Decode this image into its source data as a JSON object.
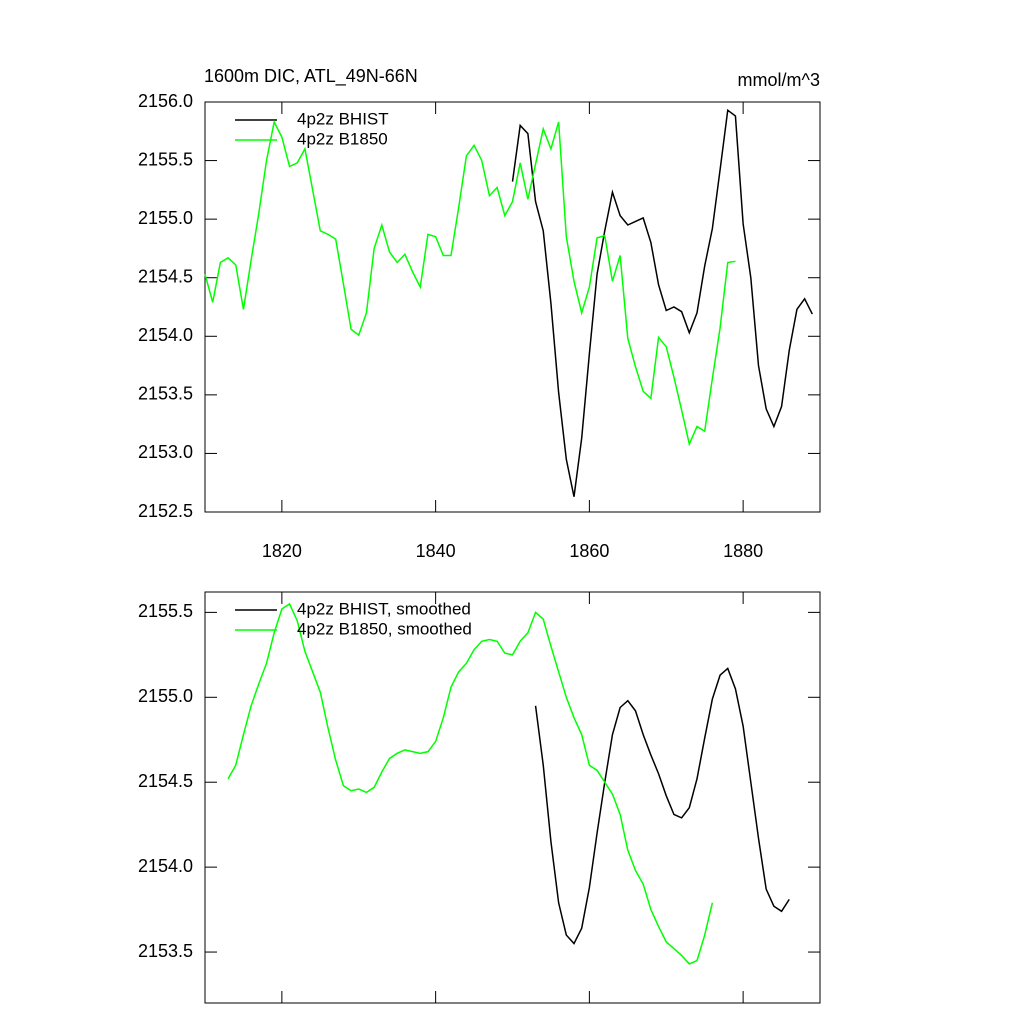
{
  "chart_data": [
    {
      "type": "line",
      "title": "1600m DIC, ATL_49N-66N",
      "subtitle": "mmol/m^3",
      "xlim": [
        1810,
        1890
      ],
      "xticks": [
        1820,
        1840,
        1860,
        1880
      ],
      "ylim": [
        2152.5,
        2156.0
      ],
      "yticks": [
        {
          "value": 2152.5,
          "label": "2152.5"
        },
        {
          "value": 2153,
          "label": "2153.0"
        },
        {
          "value": 2153.5,
          "label": "2153.5"
        },
        {
          "value": 2154,
          "label": "2154.0"
        },
        {
          "value": 2154.5,
          "label": "2154.5"
        },
        {
          "value": 2155,
          "label": "2155.0"
        },
        {
          "value": 2155.5,
          "label": "2155.5"
        },
        {
          "value": 2156,
          "label": "2156.0"
        }
      ],
      "legend": "top-left",
      "series": [
        {
          "name": "4p2z BHIST",
          "color": "#000000",
          "x": [
            1850,
            1851,
            1852,
            1853,
            1854,
            1855,
            1856,
            1857,
            1858,
            1859,
            1860,
            1861,
            1862,
            1863,
            1864,
            1865,
            1866,
            1867,
            1868,
            1869,
            1870,
            1871,
            1872,
            1873,
            1874,
            1875,
            1876,
            1877,
            1878,
            1879,
            1880,
            1881,
            1882,
            1883,
            1884,
            1885,
            1886,
            1887,
            1888,
            1889
          ],
          "values": [
            2155.32,
            2155.8,
            2155.73,
            2155.15,
            2154.9,
            2154.28,
            2153.52,
            2152.95,
            2152.63,
            2153.13,
            2153.85,
            2154.53,
            2154.9,
            2155.23,
            2155.03,
            2154.95,
            2154.98,
            2155.01,
            2154.8,
            2154.44,
            2154.22,
            2154.25,
            2154.21,
            2154.03,
            2154.2,
            2154.6,
            2154.92,
            2155.42,
            2155.93,
            2155.88,
            2154.96,
            2154.5,
            2153.75,
            2153.38,
            2153.23,
            2153.4,
            2153.88,
            2154.23,
            2154.32,
            2154.19
          ]
        },
        {
          "name": "4p2z B1850",
          "color": "#00ff00",
          "x": [
            1810,
            1811,
            1812,
            1813,
            1814,
            1815,
            1816,
            1817,
            1818,
            1819,
            1820,
            1821,
            1822,
            1823,
            1824,
            1825,
            1826,
            1827,
            1828,
            1829,
            1830,
            1831,
            1832,
            1833,
            1834,
            1835,
            1836,
            1837,
            1838,
            1839,
            1840,
            1841,
            1842,
            1843,
            1844,
            1845,
            1846,
            1847,
            1848,
            1849,
            1850,
            1851,
            1852,
            1853,
            1854,
            1855,
            1856,
            1857,
            1858,
            1859,
            1860,
            1861,
            1862,
            1863,
            1864,
            1865,
            1866,
            1867,
            1868,
            1869,
            1870,
            1871,
            1872,
            1873,
            1874,
            1875,
            1876,
            1877,
            1878,
            1879
          ],
          "values": [
            2154.53,
            2154.29,
            2154.63,
            2154.67,
            2154.61,
            2154.23,
            2154.65,
            2155.05,
            2155.5,
            2155.83,
            2155.7,
            2155.45,
            2155.48,
            2155.6,
            2155.25,
            2154.9,
            2154.87,
            2154.83,
            2154.45,
            2154.06,
            2154.01,
            2154.2,
            2154.75,
            2154.95,
            2154.72,
            2154.63,
            2154.7,
            2154.55,
            2154.42,
            2154.87,
            2154.85,
            2154.69,
            2154.69,
            2155.1,
            2155.54,
            2155.63,
            2155.5,
            2155.2,
            2155.27,
            2155.03,
            2155.15,
            2155.48,
            2155.17,
            2155.47,
            2155.77,
            2155.6,
            2155.83,
            2154.85,
            2154.47,
            2154.2,
            2154.42,
            2154.84,
            2154.86,
            2154.47,
            2154.69,
            2153.98,
            2153.74,
            2153.53,
            2153.47,
            2153.99,
            2153.91,
            2153.65,
            2153.37,
            2153.08,
            2153.23,
            2153.19,
            2153.64,
            2154.07,
            2154.63,
            2154.64
          ]
        }
      ]
    },
    {
      "type": "line",
      "xlim": [
        1810,
        1890
      ],
      "ylim": [
        2153.2,
        2155.62
      ],
      "yticks": [
        {
          "value": 2153.5,
          "label": "2153.5"
        },
        {
          "value": 2154,
          "label": "2154.0"
        },
        {
          "value": 2154.5,
          "label": "2154.5"
        },
        {
          "value": 2155,
          "label": "2155.0"
        },
        {
          "value": 2155.5,
          "label": "2155.5"
        }
      ],
      "legend": "top-left",
      "series": [
        {
          "name": "4p2z BHIST, smoothed",
          "color": "#000000",
          "x": [
            1853,
            1854,
            1855,
            1856,
            1857,
            1858,
            1859,
            1860,
            1861,
            1862,
            1863,
            1864,
            1865,
            1866,
            1867,
            1868,
            1869,
            1870,
            1871,
            1872,
            1873,
            1874,
            1875,
            1876,
            1877,
            1878,
            1879,
            1880,
            1881,
            1882,
            1883,
            1884,
            1885,
            1886
          ],
          "values": [
            2154.95,
            2154.6,
            2154.15,
            2153.79,
            2153.6,
            2153.55,
            2153.64,
            2153.88,
            2154.2,
            2154.5,
            2154.78,
            2154.94,
            2154.98,
            2154.92,
            2154.78,
            2154.66,
            2154.55,
            2154.42,
            2154.31,
            2154.29,
            2154.35,
            2154.52,
            2154.76,
            2154.99,
            2155.13,
            2155.17,
            2155.05,
            2154.83,
            2154.5,
            2154.17,
            2153.87,
            2153.77,
            2153.74,
            2153.81
          ]
        },
        {
          "name": "4p2z B1850, smoothed",
          "color": "#00ff00",
          "x": [
            1813,
            1814,
            1815,
            1816,
            1817,
            1818,
            1819,
            1820,
            1821,
            1822,
            1823,
            1824,
            1825,
            1826,
            1827,
            1828,
            1829,
            1830,
            1831,
            1832,
            1833,
            1834,
            1835,
            1836,
            1837,
            1838,
            1839,
            1840,
            1841,
            1842,
            1843,
            1844,
            1845,
            1846,
            1847,
            1848,
            1849,
            1850,
            1851,
            1852,
            1853,
            1854,
            1855,
            1856,
            1857,
            1858,
            1859,
            1860,
            1861,
            1862,
            1863,
            1864,
            1865,
            1866,
            1867,
            1868,
            1869,
            1870,
            1871,
            1872,
            1873,
            1874,
            1875,
            1876
          ],
          "values": [
            2154.52,
            2154.6,
            2154.78,
            2154.95,
            2155.08,
            2155.2,
            2155.38,
            2155.52,
            2155.55,
            2155.45,
            2155.27,
            2155.15,
            2155.03,
            2154.82,
            2154.63,
            2154.48,
            2154.45,
            2154.46,
            2154.44,
            2154.47,
            2154.56,
            2154.64,
            2154.67,
            2154.69,
            2154.68,
            2154.67,
            2154.68,
            2154.74,
            2154.88,
            2155.06,
            2155.15,
            2155.2,
            2155.28,
            2155.33,
            2155.34,
            2155.33,
            2155.26,
            2155.25,
            2155.33,
            2155.38,
            2155.5,
            2155.46,
            2155.3,
            2155.15,
            2155.0,
            2154.88,
            2154.78,
            2154.6,
            2154.57,
            2154.5,
            2154.43,
            2154.31,
            2154.1,
            2153.98,
            2153.9,
            2153.75,
            2153.65,
            2153.56,
            2153.52,
            2153.48,
            2153.43,
            2153.45,
            2153.6,
            2153.79
          ]
        }
      ]
    }
  ]
}
